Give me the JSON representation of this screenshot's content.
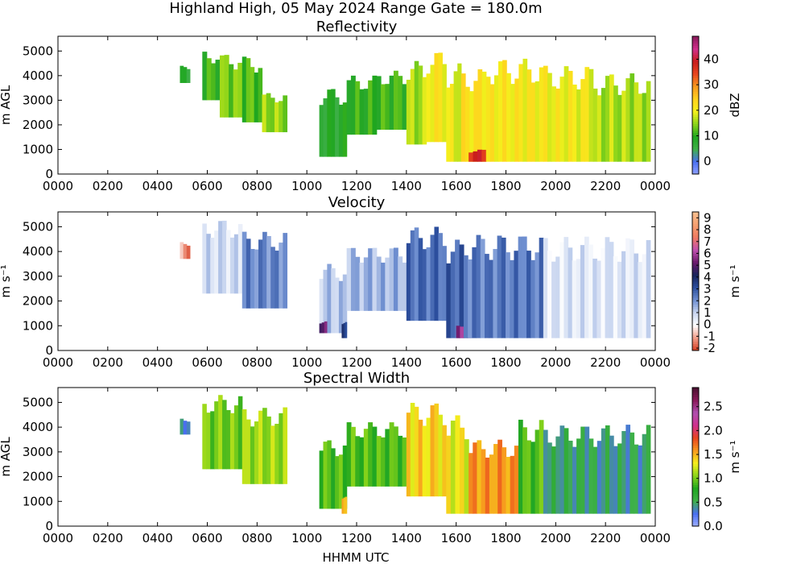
{
  "figure": {
    "title": "Highland High, 05 May 2024 Range Gate = 180.0m",
    "xlabel": "HHMM UTC"
  },
  "chart_data": [
    {
      "type": "heatmap",
      "title": "Reflectivity",
      "ylabel": "m AGL",
      "colorbar_label": "dBZ",
      "xlim": [
        0,
        24
      ],
      "ylim": [
        0,
        5600
      ],
      "x_ticks": [
        "0000",
        "0200",
        "0400",
        "0600",
        "0800",
        "1000",
        "1200",
        "1400",
        "1600",
        "1800",
        "2000",
        "2200",
        "0000"
      ],
      "y_ticks": [
        "0",
        "1000",
        "2000",
        "3000",
        "4000",
        "5000"
      ],
      "colorbar_ticks": [
        "0",
        "10",
        "20",
        "30",
        "40"
      ],
      "clim": [
        -5,
        49
      ],
      "colormap": [
        "#8fa0ff",
        "#4a6ff0",
        "#3fb04a",
        "#1fa61f",
        "#8ad41a",
        "#f4f01c",
        "#ffd21e",
        "#f79a1e",
        "#e8461e",
        "#c81c1c",
        "#d0308c",
        "#8a1a5a"
      ],
      "cells": [
        {
          "t_start": 4.9,
          "t_end": 5.3,
          "z_bottom": 3700,
          "z_top": 4400,
          "value": 7
        },
        {
          "t_start": 5.8,
          "t_end": 6.5,
          "z_bottom": 3000,
          "z_top": 5000,
          "value": 11
        },
        {
          "t_start": 6.5,
          "t_end": 7.4,
          "z_bottom": 2300,
          "z_top": 4900,
          "value": 14
        },
        {
          "t_start": 7.4,
          "t_end": 8.2,
          "z_bottom": 2100,
          "z_top": 4800,
          "value": 12
        },
        {
          "t_start": 8.2,
          "t_end": 9.2,
          "z_bottom": 1700,
          "z_top": 3300,
          "value": 15
        },
        {
          "t_start": 10.5,
          "t_end": 11.6,
          "z_bottom": 700,
          "z_top": 3500,
          "value": 8
        },
        {
          "t_start": 11.6,
          "t_end": 12.8,
          "z_bottom": 1600,
          "z_top": 4000,
          "value": 10
        },
        {
          "t_start": 12.8,
          "t_end": 14.0,
          "z_bottom": 1800,
          "z_top": 4200,
          "value": 11
        },
        {
          "t_start": 14.0,
          "t_end": 14.8,
          "z_bottom": 1200,
          "z_top": 4600,
          "value": 16
        },
        {
          "t_start": 14.8,
          "t_end": 15.6,
          "z_bottom": 1300,
          "z_top": 5000,
          "value": 21
        },
        {
          "t_start": 15.6,
          "t_end": 16.2,
          "z_bottom": 500,
          "z_top": 4500,
          "value": 19
        },
        {
          "t_start": 16.2,
          "t_end": 17.2,
          "z_bottom": 500,
          "z_top": 4300,
          "value": 22
        },
        {
          "t_start": 16.5,
          "t_end": 17.2,
          "z_bottom": 500,
          "z_top": 1000,
          "value": 38
        },
        {
          "t_start": 17.2,
          "t_end": 19.5,
          "z_bottom": 500,
          "z_top": 4700,
          "value": 21
        },
        {
          "t_start": 19.5,
          "t_end": 21.5,
          "z_bottom": 500,
          "z_top": 4400,
          "value": 20
        },
        {
          "t_start": 21.5,
          "t_end": 23.8,
          "z_bottom": 500,
          "z_top": 4100,
          "value": 16
        }
      ]
    },
    {
      "type": "heatmap",
      "title": "Velocity",
      "ylabel": "m s⁻¹",
      "colorbar_label": "m s⁻¹",
      "xlim": [
        0,
        24
      ],
      "ylim": [
        0,
        5600
      ],
      "x_ticks": [
        "0000",
        "0200",
        "0400",
        "0600",
        "0800",
        "1000",
        "1200",
        "1400",
        "1600",
        "1800",
        "2000",
        "2200",
        "0000"
      ],
      "y_ticks": [
        "0",
        "1000",
        "2000",
        "3000",
        "4000",
        "5000"
      ],
      "colorbar_ticks": [
        "-2",
        "-1",
        "0",
        "1",
        "2",
        "3",
        "4",
        "5",
        "6",
        "7",
        "8",
        "9"
      ],
      "clim": [
        -2.2,
        9.5
      ],
      "colormap": [
        "#d43a1e",
        "#f09a86",
        "#ffffff",
        "#c9d6f0",
        "#6f8fd0",
        "#2c4f9e",
        "#16235a",
        "#6a1a6a",
        "#c050b0",
        "#f07a60",
        "#f5a070",
        "#f8c090"
      ],
      "cells": [
        {
          "t_start": 4.9,
          "t_end": 5.3,
          "z_bottom": 3700,
          "z_top": 4400,
          "value": -1.2
        },
        {
          "t_start": 5.8,
          "t_end": 7.4,
          "z_bottom": 2300,
          "z_top": 5300,
          "value": 0.8
        },
        {
          "t_start": 7.4,
          "t_end": 9.2,
          "z_bottom": 1700,
          "z_top": 4800,
          "value": 2.2
        },
        {
          "t_start": 10.5,
          "t_end": 11.6,
          "z_bottom": 700,
          "z_top": 3500,
          "value": 1.2
        },
        {
          "t_start": 10.5,
          "t_end": 10.8,
          "z_bottom": 700,
          "z_top": 1200,
          "value": 5.3
        },
        {
          "t_start": 11.4,
          "t_end": 11.6,
          "z_bottom": 500,
          "z_top": 1200,
          "value": 3.6
        },
        {
          "t_start": 11.6,
          "t_end": 14.0,
          "z_bottom": 1600,
          "z_top": 4200,
          "value": 1.5
        },
        {
          "t_start": 14.0,
          "t_end": 15.6,
          "z_bottom": 1200,
          "z_top": 5000,
          "value": 2.6
        },
        {
          "t_start": 15.6,
          "t_end": 16.3,
          "z_bottom": 500,
          "z_top": 4500,
          "value": 2.8
        },
        {
          "t_start": 16.0,
          "t_end": 16.6,
          "z_bottom": 500,
          "z_top": 1000,
          "value": 5.5
        },
        {
          "t_start": 16.3,
          "t_end": 19.5,
          "z_bottom": 500,
          "z_top": 4700,
          "value": 2.4
        },
        {
          "t_start": 19.5,
          "t_end": 23.8,
          "z_bottom": 500,
          "z_top": 4600,
          "value": 0.6
        }
      ]
    },
    {
      "type": "heatmap",
      "title": "Spectral Width",
      "ylabel": "m AGL",
      "colorbar_label": "m s⁻¹",
      "xlim": [
        0,
        24
      ],
      "ylim": [
        0,
        5600
      ],
      "x_ticks": [
        "0000",
        "0200",
        "0400",
        "0600",
        "0800",
        "1000",
        "1200",
        "1400",
        "1600",
        "1800",
        "2000",
        "2200",
        "0000"
      ],
      "y_ticks": [
        "0",
        "1000",
        "2000",
        "3000",
        "4000",
        "5000"
      ],
      "colorbar_ticks": [
        "0.0",
        "0.5",
        "1.0",
        "1.5",
        "2.0",
        "2.5"
      ],
      "clim": [
        0,
        2.9
      ],
      "colormap": [
        "#9fb0ff",
        "#4a6ff0",
        "#3fb04a",
        "#1fa61f",
        "#8ad41a",
        "#f4f01c",
        "#f79a1e",
        "#e8461e",
        "#d0308c",
        "#b050b0",
        "#8a1a5a",
        "#4a1030"
      ],
      "cells": [
        {
          "t_start": 4.9,
          "t_end": 5.3,
          "z_bottom": 3700,
          "z_top": 4400,
          "value": 0.4
        },
        {
          "t_start": 5.8,
          "t_end": 7.4,
          "z_bottom": 2300,
          "z_top": 5300,
          "value": 1.0
        },
        {
          "t_start": 7.4,
          "t_end": 9.2,
          "z_bottom": 1700,
          "z_top": 4800,
          "value": 1.1
        },
        {
          "t_start": 10.5,
          "t_end": 11.6,
          "z_bottom": 700,
          "z_top": 3500,
          "value": 0.9
        },
        {
          "t_start": 11.4,
          "t_end": 11.6,
          "z_bottom": 500,
          "z_top": 1200,
          "value": 1.6
        },
        {
          "t_start": 11.6,
          "t_end": 14.0,
          "z_bottom": 1600,
          "z_top": 4200,
          "value": 0.9
        },
        {
          "t_start": 14.0,
          "t_end": 15.6,
          "z_bottom": 1200,
          "z_top": 5000,
          "value": 1.4
        },
        {
          "t_start": 15.6,
          "t_end": 16.5,
          "z_bottom": 500,
          "z_top": 4500,
          "value": 1.3
        },
        {
          "t_start": 16.5,
          "t_end": 18.5,
          "z_bottom": 500,
          "z_top": 3500,
          "value": 1.6
        },
        {
          "t_start": 18.5,
          "t_end": 19.5,
          "z_bottom": 500,
          "z_top": 4300,
          "value": 0.9
        },
        {
          "t_start": 19.5,
          "t_end": 21.5,
          "z_bottom": 500,
          "z_top": 4100,
          "value": 0.5
        },
        {
          "t_start": 21.5,
          "t_end": 23.8,
          "z_bottom": 500,
          "z_top": 4100,
          "value": 0.45
        }
      ]
    }
  ]
}
